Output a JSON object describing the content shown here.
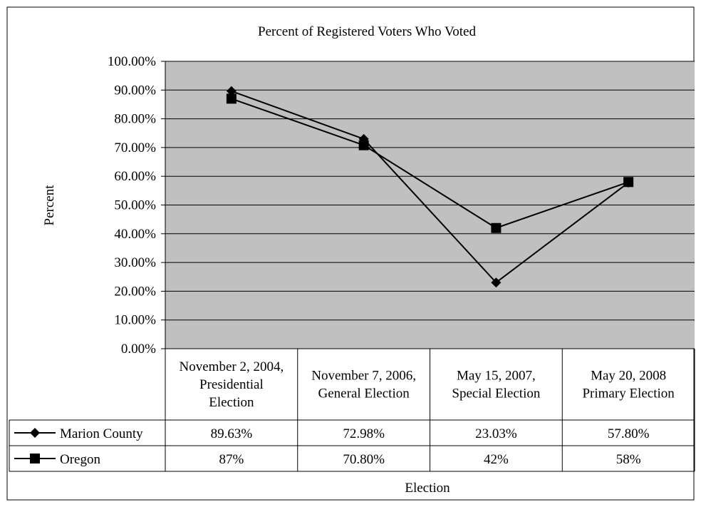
{
  "chart_data": {
    "type": "line",
    "title": "Percent of Registered Voters Who Voted",
    "xlabel": "Election",
    "ylabel": "Percent",
    "ylim": [
      0,
      100
    ],
    "y_ticks": [
      "0.00%",
      "10.00%",
      "20.00%",
      "30.00%",
      "40.00%",
      "50.00%",
      "60.00%",
      "70.00%",
      "80.00%",
      "90.00%",
      "100.00%"
    ],
    "grid": true,
    "plot_background": "#c0c0c0",
    "legend": "data-table",
    "categories": [
      [
        "November 2, 2004,",
        "Presidential",
        "Election"
      ],
      [
        "November 7, 2006,",
        "General Election"
      ],
      [
        "May 15, 2007,",
        "Special Election"
      ],
      [
        "May 20, 2008",
        "Primary Election"
      ]
    ],
    "series": [
      {
        "name": "Marion County",
        "marker": "diamond",
        "values": [
          89.63,
          72.98,
          23.03,
          57.8
        ],
        "labels": [
          "89.63%",
          "72.98%",
          "23.03%",
          "57.80%"
        ]
      },
      {
        "name": "Oregon",
        "marker": "square",
        "values": [
          87,
          70.8,
          42,
          58
        ],
        "labels": [
          "87%",
          "70.80%",
          "42%",
          "58%"
        ]
      }
    ]
  }
}
